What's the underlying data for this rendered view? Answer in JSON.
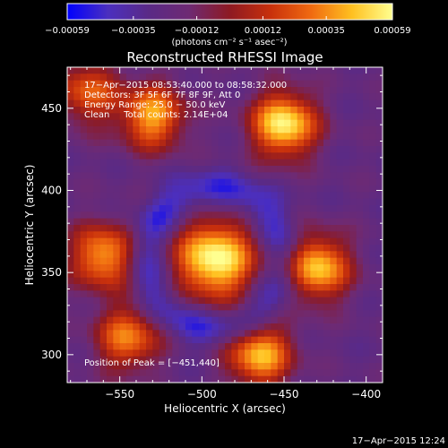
{
  "chart_data": {
    "type": "heatmap",
    "title": "Reconstructed RHESSI Image",
    "xlabel": "Heliocentric X (arcsec)",
    "ylabel": "Heliocentric Y (arcsec)",
    "xlim": [
      -582,
      -390
    ],
    "ylim": [
      283,
      475
    ],
    "x_ticks": [
      -550,
      -500,
      -450,
      -400
    ],
    "x_tick_labels": [
      "−550",
      "−500",
      "−450",
      "−400"
    ],
    "y_ticks": [
      300,
      350,
      400,
      450
    ],
    "y_tick_labels": [
      "300",
      "350",
      "400",
      "450"
    ],
    "colorbar": {
      "range": [
        -0.00059,
        0.00059
      ],
      "ticks": [
        -0.00059,
        -0.00035,
        -0.00012,
        0.00012,
        0.00035,
        0.00059
      ],
      "tick_labels": [
        "−0.00059",
        "−0.00035",
        "−0.00012",
        "0.00012",
        "0.00035",
        "0.00059"
      ],
      "unit_label": "(photons cm⁻² s⁻¹ asec⁻²)"
    },
    "annotations": [
      "17−Apr−2015 08:53:40.000 to 08:58:32.000",
      "Detectors: 3F 5F 6F 7F 8F 9F, Att 0",
      "Energy Range: 25.0 − 50.0 keV",
      "Clean     Total counts: 2.14E+04"
    ],
    "peak_label": "Position of Peak = [−451,440]",
    "peak": [
      -451,
      440
    ],
    "grid": false,
    "colormap": [
      "#0000ff",
      "#4b2fbf",
      "#5a2a86",
      "#6e2a73",
      "#8e1a22",
      "#c8300c",
      "#f06a10",
      "#ffc020",
      "#ffff90"
    ],
    "sources": [
      {
        "x": -492,
        "y": 358,
        "amp": 1.0
      },
      {
        "x": -450,
        "y": 440,
        "amp": 0.95
      },
      {
        "x": -430,
        "y": 353,
        "amp": 0.85
      },
      {
        "x": -465,
        "y": 300,
        "amp": 0.8
      },
      {
        "x": -530,
        "y": 445,
        "amp": 0.75
      },
      {
        "x": -560,
        "y": 360,
        "amp": 0.75
      },
      {
        "x": -545,
        "y": 310,
        "amp": 0.65
      },
      {
        "x": -570,
        "y": 460,
        "amp": 0.55
      }
    ]
  },
  "footer": {
    "timestamp": "17−Apr−2015 12:24"
  }
}
